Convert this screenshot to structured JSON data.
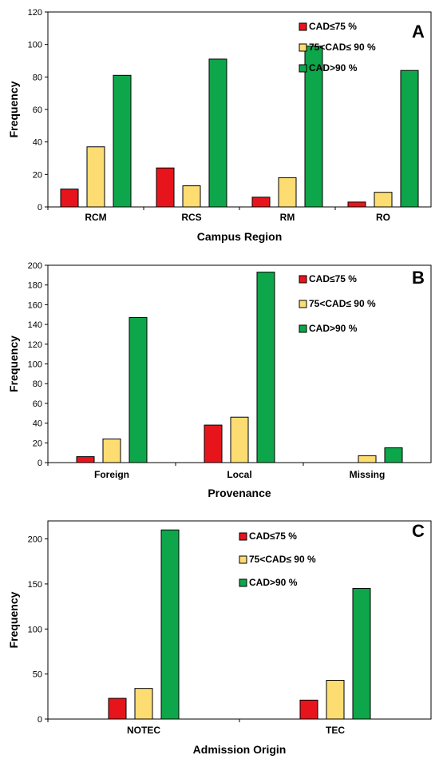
{
  "colors": {
    "low": "#e8141c",
    "mid": "#fddc72",
    "high": "#0ea64a",
    "outline": "#000000"
  },
  "legend": [
    "CAD≤75 %",
    "75<CAD≤ 90 %",
    "CAD>90 %"
  ],
  "chart_data": [
    {
      "type": "bar",
      "panel_label": "A",
      "xlabel": "Campus Region",
      "ylabel": "Frequency",
      "ylim": [
        0,
        120
      ],
      "yticks": [
        0,
        20,
        40,
        60,
        80,
        100,
        120
      ],
      "categories": [
        "RCM",
        "RCS",
        "RM",
        "RO"
      ],
      "series": [
        {
          "name": "CAD≤75 %",
          "values": [
            11,
            24,
            6,
            3
          ]
        },
        {
          "name": "75<CAD≤ 90 %",
          "values": [
            37,
            13,
            18,
            9
          ]
        },
        {
          "name": "CAD>90 %",
          "values": [
            81,
            91,
            99,
            84
          ]
        }
      ]
    },
    {
      "type": "bar",
      "panel_label": "B",
      "xlabel": "Provenance",
      "ylabel": "Frequency",
      "ylim": [
        0,
        200
      ],
      "yticks": [
        0,
        20,
        40,
        60,
        80,
        100,
        120,
        140,
        160,
        180,
        200
      ],
      "categories": [
        "Foreign",
        "Local",
        "Missing"
      ],
      "series": [
        {
          "name": "CAD≤75 %",
          "values": [
            6,
            38,
            0
          ]
        },
        {
          "name": "75<CAD≤ 90 %",
          "values": [
            24,
            46,
            7
          ]
        },
        {
          "name": "CAD>90 %",
          "values": [
            147,
            193,
            15
          ]
        }
      ]
    },
    {
      "type": "bar",
      "panel_label": "C",
      "xlabel": "Admission Origin",
      "ylabel": "Frequency",
      "ylim": [
        0,
        220
      ],
      "yticks": [
        0,
        50,
        100,
        150,
        200
      ],
      "categories": [
        "NOTEC",
        "TEC"
      ],
      "series": [
        {
          "name": "CAD≤75 %",
          "values": [
            23,
            21
          ]
        },
        {
          "name": "75<CAD≤ 90 %",
          "values": [
            34,
            43
          ]
        },
        {
          "name": "CAD>90 %",
          "values": [
            210,
            145
          ]
        }
      ]
    }
  ]
}
